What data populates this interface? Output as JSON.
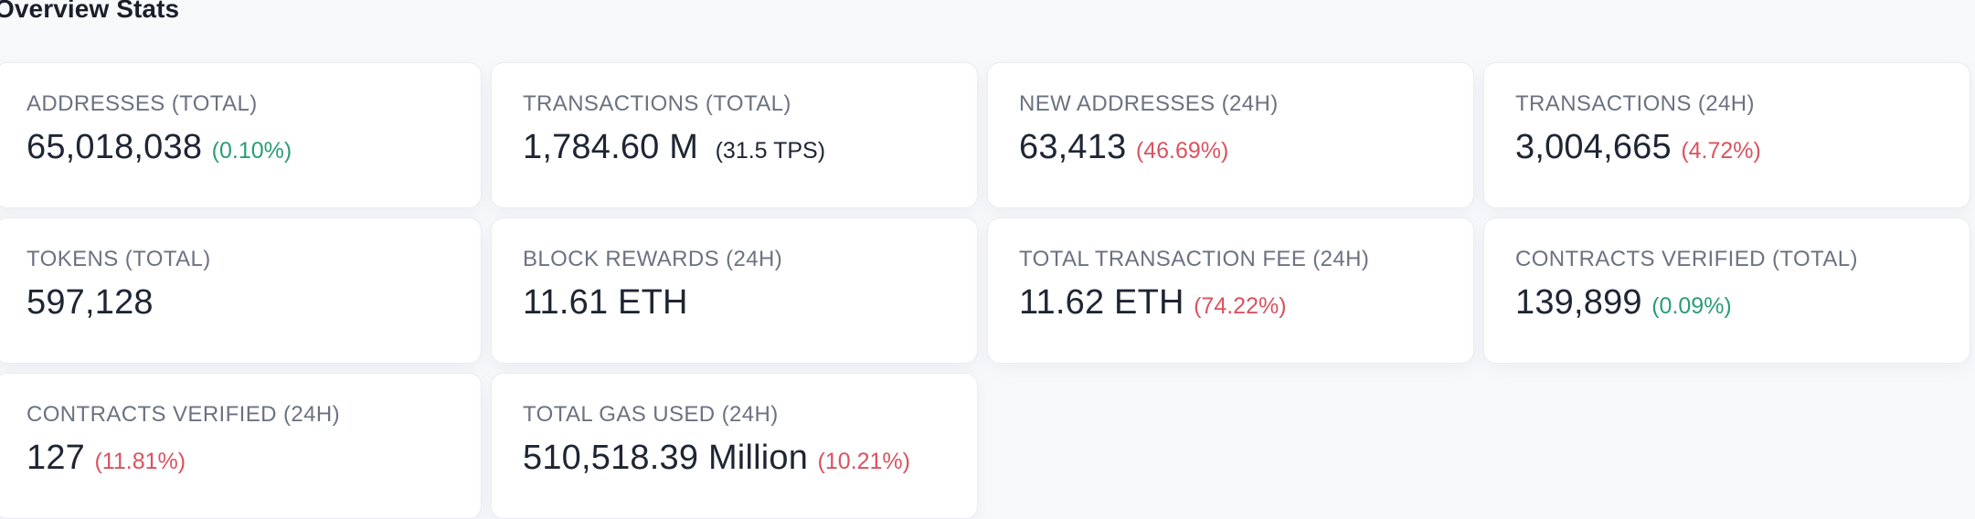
{
  "section": {
    "title": "Overview Stats"
  },
  "colors": {
    "positive": "#2a9d77",
    "negative": "#d9535f",
    "card_bg": "#ffffff"
  },
  "stats": [
    {
      "label": "ADDRESSES (TOTAL)",
      "value": "65,018,038",
      "change": "(0.10%)",
      "trend": "up"
    },
    {
      "label": "TRANSACTIONS (TOTAL)",
      "value": "1,784.60 M",
      "change": "(31.5 TPS)",
      "trend": "neutral"
    },
    {
      "label": "NEW ADDRESSES (24H)",
      "value": "63,413",
      "change": "(46.69%)",
      "trend": "down"
    },
    {
      "label": "TRANSACTIONS (24H)",
      "value": "3,004,665",
      "change": "(4.72%)",
      "trend": "down"
    },
    {
      "label": "TOKENS (TOTAL)",
      "value": "597,128",
      "change": "",
      "trend": "none"
    },
    {
      "label": "BLOCK REWARDS (24H)",
      "value": "11.61 ETH",
      "change": "",
      "trend": "none"
    },
    {
      "label": "TOTAL TRANSACTION FEE (24H)",
      "value": "11.62 ETH",
      "change": "(74.22%)",
      "trend": "down"
    },
    {
      "label": "CONTRACTS VERIFIED (TOTAL)",
      "value": "139,899",
      "change": "(0.09%)",
      "trend": "up"
    },
    {
      "label": "CONTRACTS VERIFIED (24H)",
      "value": "127",
      "change": "(11.81%)",
      "trend": "down"
    },
    {
      "label": "TOTAL GAS USED (24H)",
      "value": "510,518.39 Million",
      "change": "(10.21%)",
      "trend": "down"
    }
  ]
}
